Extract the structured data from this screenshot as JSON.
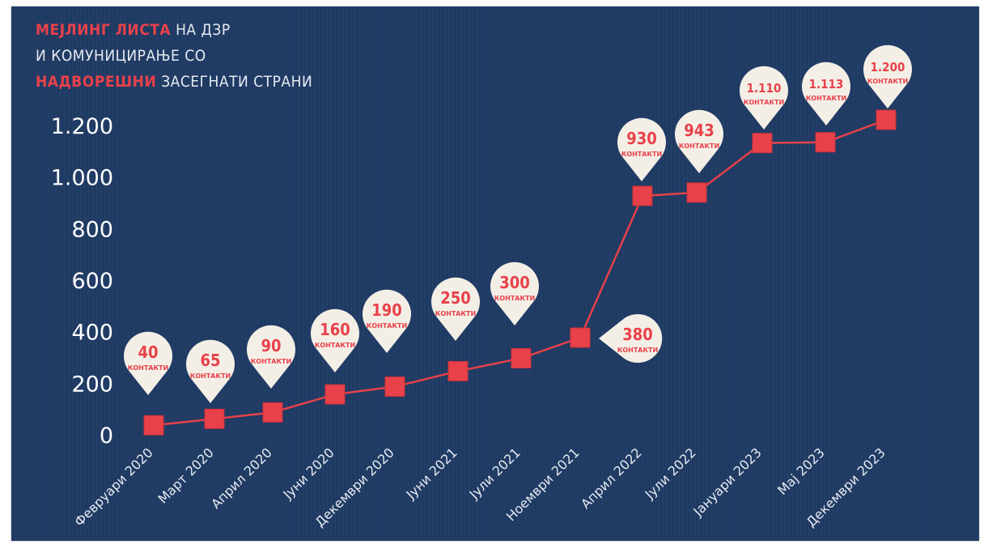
{
  "header": {
    "line1_highlight": "МЕЈЛИНГ ЛИСТА",
    "line1_rest": "НА ДЗР",
    "line2": "И КОМУНИЦИРАЊЕ СО",
    "line3_highlight": "НАДВОРЕШНИ",
    "line3_rest": "ЗАСЕГНАТИ СТРАНИ"
  },
  "colors": {
    "background": "#1f3a63",
    "accent": "#e8414a",
    "bubble": "#f4efe6",
    "axis_text": "#ffffff"
  },
  "chart_data": {
    "type": "line",
    "title": "",
    "xlabel": "",
    "ylabel": "",
    "ylim": [
      0,
      1200
    ],
    "yticks": [
      {
        "value": 0,
        "label": "0"
      },
      {
        "value": 200,
        "label": "200"
      },
      {
        "value": 400,
        "label": "400"
      },
      {
        "value": 600,
        "label": "600"
      },
      {
        "value": 800,
        "label": "800"
      },
      {
        "value": 1000,
        "label": "1.000"
      },
      {
        "value": 1200,
        "label": "1.200"
      }
    ],
    "categories": [
      "Февруари 2020",
      "Март 2020",
      "Април 2020",
      "Јуни 2020",
      "Декември 2020",
      "Јуни 2021",
      "Јули 2021",
      "Ноември 2021",
      "Април 2022",
      "Јули 2022",
      "Јануари 2023",
      "Мај 2023",
      "Декември 2023"
    ],
    "values": [
      40,
      65,
      90,
      160,
      190,
      250,
      300,
      380,
      930,
      943,
      1110,
      1113,
      1200
    ],
    "data_labels": [
      "40",
      "65",
      "90",
      "160",
      "190",
      "250",
      "300",
      "380",
      "930",
      "943",
      "1.110",
      "1.113",
      "1.200"
    ],
    "unit_label": "КОНТАКТИ",
    "grid": false,
    "legend": "none"
  }
}
